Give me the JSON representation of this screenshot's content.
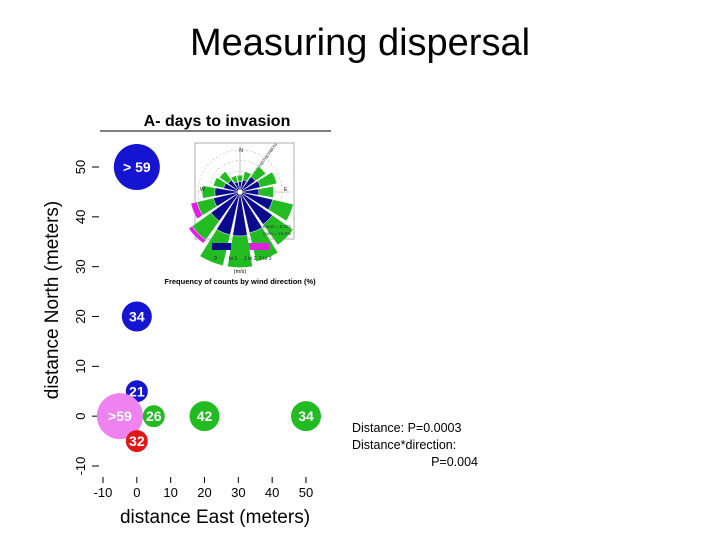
{
  "slide": {
    "title": "Measuring dispersal"
  },
  "stats": {
    "line1": "Distance: P=0.0003",
    "line2": "Distance*direction:",
    "line3": "P=0.004"
  },
  "chart_data": {
    "type": "scatter",
    "title": "A- days to invasion",
    "xlabel": "distance East (meters)",
    "ylabel": "distance North (meters)",
    "xlim": [
      -12,
      52
    ],
    "ylim": [
      -10,
      58
    ],
    "xticks": [
      -10,
      0,
      10,
      20,
      30,
      40,
      50
    ],
    "yticks": [
      -10,
      0,
      10,
      20,
      30,
      40,
      50
    ],
    "grid": false,
    "points": [
      {
        "x": 0,
        "y": 50,
        "label": "> 59",
        "color": "#1414d2",
        "size": "large"
      },
      {
        "x": 0,
        "y": 20,
        "label": "34",
        "color": "#1414d2",
        "size": "medium"
      },
      {
        "x": 0,
        "y": 5,
        "label": "21",
        "color": "#1414d2",
        "size": "small"
      },
      {
        "x": -5,
        "y": 0,
        "label": ">59",
        "color": "#ee82ee",
        "size": "large"
      },
      {
        "x": 5,
        "y": 0,
        "label": "26",
        "color": "#22bb22",
        "size": "small"
      },
      {
        "x": 20,
        "y": 0,
        "label": "42",
        "color": "#22bb22",
        "size": "medium"
      },
      {
        "x": 50,
        "y": 0,
        "label": "34",
        "color": "#22bb22",
        "size": "medium"
      },
      {
        "x": 0,
        "y": -5,
        "label": "32",
        "color": "#e01818",
        "size": "small"
      }
    ]
  },
  "inset": {
    "type": "wind-rose",
    "compass": {
      "n": "N",
      "w": "W",
      "e": "E"
    },
    "rings": [
      "5%",
      "10%",
      "15%",
      "20%",
      "25%",
      "30%"
    ],
    "stats": [
      "mean = 0.331",
      "calm = 16.6%"
    ],
    "legend": {
      "ticks": [
        "0",
        "to 1",
        "1 to 2",
        "2 to 3"
      ],
      "colors": [
        "#0a0a8c",
        "#22bb22",
        "#e020e0"
      ],
      "units": "(m/s)"
    },
    "caption": "Frequency of counts by wind direction (%)",
    "sectors": [
      {
        "deg": 0,
        "v": [
          5,
          3
        ]
      },
      {
        "deg": 22.5,
        "v": [
          6,
          4
        ]
      },
      {
        "deg": 45,
        "v": [
          9,
          6
        ]
      },
      {
        "deg": 67.5,
        "v": [
          10,
          8
        ]
      },
      {
        "deg": 90,
        "v": [
          9,
          7
        ]
      },
      {
        "deg": 112.5,
        "v": [
          16,
          10
        ]
      },
      {
        "deg": 135,
        "v": [
          19,
          12
        ]
      },
      {
        "deg": 157.5,
        "v": [
          20,
          14
        ]
      },
      {
        "deg": 180,
        "v": [
          21,
          15
        ]
      },
      {
        "deg": 202.5,
        "v": [
          21,
          15
        ]
      },
      {
        "deg": 225,
        "v": [
          17,
          11,
          2
        ]
      },
      {
        "deg": 247.5,
        "v": [
          13,
          8,
          3
        ]
      },
      {
        "deg": 270,
        "v": [
          12,
          6
        ]
      },
      {
        "deg": 292.5,
        "v": [
          8,
          5
        ]
      },
      {
        "deg": 315,
        "v": [
          7,
          5
        ]
      },
      {
        "deg": 337.5,
        "v": [
          5,
          3
        ]
      }
    ]
  }
}
